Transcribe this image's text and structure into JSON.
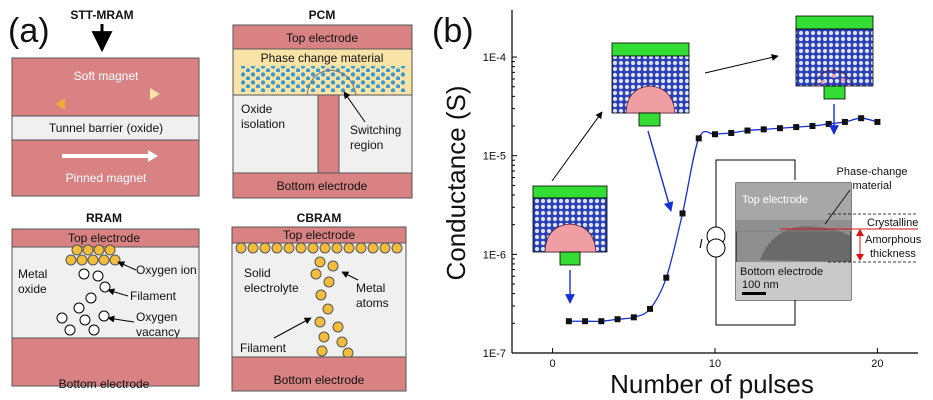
{
  "panel_a": {
    "letter": "(a)",
    "stt": {
      "title": "STT-MRAM",
      "soft": "Soft magnet",
      "barrier": "Tunnel barrier (oxide)",
      "pinned": "Pinned magnet"
    },
    "pcm": {
      "title": "PCM",
      "top": "Top electrode",
      "material": "Phase change material",
      "oxide1": "Oxide",
      "oxide2": "isolation",
      "switch1": "Switching",
      "switch2": "region",
      "bottom": "Bottom electrode"
    },
    "rram": {
      "title": "RRAM",
      "top": "Top electrode",
      "metal": "Metal",
      "oxide": "oxide",
      "ion": "Oxygen ion",
      "filament": "Filament",
      "vac1": "Oxygen",
      "vac2": "vacancy",
      "bottom": "Bottom electrode"
    },
    "cbram": {
      "title": "CBRAM",
      "top": "Top electrode",
      "solid": "Solid",
      "electrolyte": "electrolyte",
      "metal": "Metal",
      "atoms": "atoms",
      "filament": "Filament",
      "bottom": "Bottom electrode"
    }
  },
  "panel_b": {
    "letter": "(b)",
    "inset": {
      "top": "Top electrode",
      "bottom": "Bottom electrode",
      "scale": "100 nm",
      "pcm1": "Phase-change",
      "pcm2": "material",
      "crys": "Crystalline",
      "amor": "Amorphous",
      "thick": "thickness",
      "current": "I"
    }
  },
  "chart_data": {
    "type": "scatter",
    "xlabel": "Number of pulses",
    "ylabel": "Conductance (S)",
    "xlim": [
      -2.5,
      22.5
    ],
    "ylim": [
      1e-07,
      0.0003
    ],
    "yscale": "log",
    "xticks": [
      0,
      10,
      20
    ],
    "xtick_labels": [
      "0",
      "10",
      "20"
    ],
    "yticks": [
      1e-07,
      1e-06,
      1e-05,
      0.0001
    ],
    "ytick_labels": [
      "1E-7",
      "1E-6",
      "1E-5",
      "1E-4"
    ],
    "x": [
      1,
      2,
      3,
      4,
      5,
      6,
      7,
      8,
      9,
      10,
      11,
      12,
      13,
      14,
      15,
      16,
      17,
      18,
      19,
      20
    ],
    "y": [
      2.1e-07,
      2.1e-07,
      2.1e-07,
      2.2e-07,
      2.3e-07,
      2.8e-07,
      5.8e-07,
      2.6e-06,
      1.5e-05,
      1.65e-05,
      1.7e-05,
      1.8e-05,
      1.85e-05,
      1.9e-05,
      1.95e-05,
      2e-05,
      2.1e-05,
      2.2e-05,
      2.4e-05,
      2.2e-05
    ],
    "grid": false
  }
}
